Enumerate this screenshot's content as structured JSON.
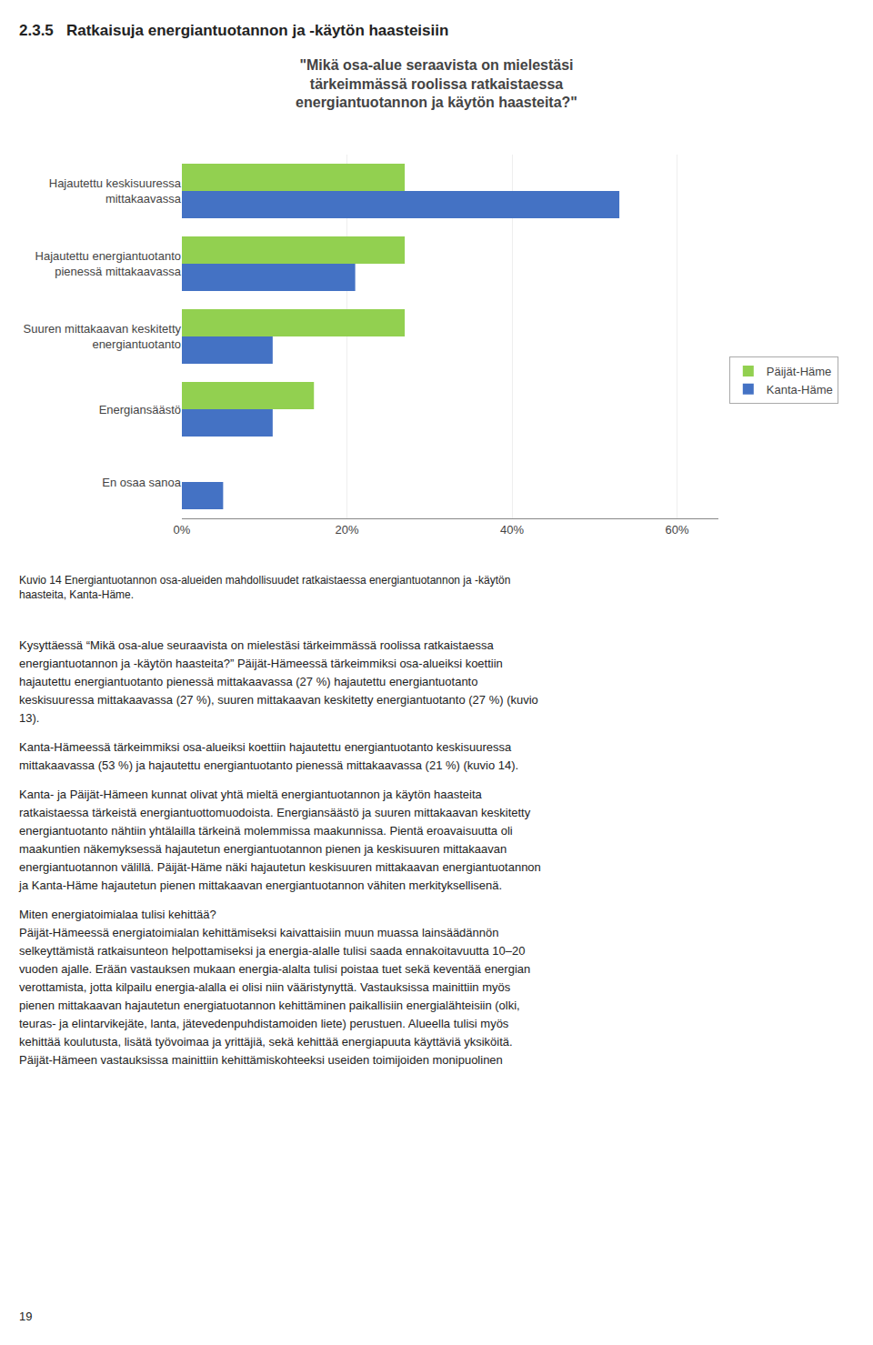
{
  "heading": "2.3.5   Ratkaisuja energiantuotannon ja -käytön haasteisiin",
  "chart_data": {
    "type": "bar",
    "orientation": "horizontal",
    "title": "\"Mikä osa-alue seraavista on mielestäsi\ntärkeimmässä roolissa ratkaistaessa\nenergiantuotannon ja käytön haasteita?\"",
    "categories": [
      "Hajautettu keskisuuressa\nmittakaavassa",
      "Hajautettu energiantuotanto\npienessä mittakaavassa",
      "Suuren mittakaavan keskitetty\nenergiantuotanto",
      "Energiansäästö",
      "En osaa sanoa"
    ],
    "series": [
      {
        "name": "Päijät-Häme",
        "color": "#92D050",
        "values": [
          27,
          27,
          27,
          16,
          0
        ]
      },
      {
        "name": "Kanta-Häme",
        "color": "#4472C4",
        "values": [
          53,
          21,
          11,
          11,
          5
        ]
      }
    ],
    "xlim": [
      0,
      65
    ],
    "xticks": [
      {
        "value": 0,
        "label": "0%"
      },
      {
        "value": 20,
        "label": "20%"
      },
      {
        "value": 40,
        "label": "40%"
      },
      {
        "value": 60,
        "label": "60%"
      }
    ],
    "grid": true,
    "legend": "right"
  },
  "caption": "Kuvio 14 Energiantuotannon osa-alueiden mahdollisuudet ratkaistaessa energiantuotannon ja -käytön\nhaasteita, Kanta-Häme.",
  "body": [
    [
      "Kysyttäessä “Mikä osa-alue seuraavista on mielestäsi tärkeimmässä roolissa ratkaistaessa",
      "energiantuotannon ja -käytön haasteita?” Päijät-Hämeessä tärkeimmiksi osa-alueiksi koettiin",
      "hajautettu energiantuotanto pienessä mittakaavassa (27 %) hajautettu energiantuotanto",
      "keskisuuressa mittakaavassa (27 %), suuren mittakaavan keskitetty energiantuotanto (27 %) (kuvio",
      "13)."
    ],
    [
      "Kanta-Hämeessä tärkeimmiksi osa-alueiksi koettiin hajautettu energiantuotanto keskisuuressa",
      "mittakaavassa (53 %) ja hajautettu energiantuotanto pienessä mittakaavassa (21 %) (kuvio 14)."
    ],
    [
      "Kanta- ja Päijät-Hämeen kunnat olivat yhtä mieltä energiantuotannon ja käytön haasteita",
      "ratkaistaessa tärkeistä energiantuottomuodoista. Energiansäästö ja suuren mittakaavan keskitetty",
      "energiantuotanto nähtiin yhtälailla tärkeinä molemmissa maakunnissa. Pientä eroavaisuutta oli",
      "maakuntien näkemyksessä hajautetun energiantuotannon pienen ja keskisuuren mittakaavan",
      "energiantuotannon välillä. Päijät-Häme näki hajautetun keskisuuren mittakaavan energiantuotannon",
      "ja Kanta-Häme hajautetun pienen mittakaavan energiantuotannon vähiten merkityksellisenä."
    ],
    [
      "Miten energiatoimialaa tulisi kehittää?",
      "Päijät-Hämeessä energiatoimialan kehittämiseksi kaivattaisiin muun muassa lainsäädännön",
      "selkeyttämistä ratkaisunteon helpottamiseksi ja energia-alalle tulisi saada ennakoitavuutta 10–20",
      "vuoden ajalle. Erään vastauksen mukaan energia-alalta tulisi poistaa tuet sekä keventää energian",
      "verottamista, jotta kilpailu energia-alalla ei olisi niin vääristynyttä. Vastauksissa mainittiin myös",
      "pienen mittakaavan hajautetun energiatuotannon kehittäminen paikallisiin energialähteisiin (olki,",
      "teuras- ja elintarvikejäte, lanta, jätevedenpuhdistamoiden liete) perustuen. Alueella tulisi myös",
      "kehittää koulutusta, lisätä työvoimaa ja yrittäjiä, sekä kehittää energiapuuta käyttäviä yksiköitä.",
      "Päijät-Hämeen vastauksissa mainittiin kehittämiskohteeksi useiden toimijoiden monipuolinen"
    ]
  ],
  "page_number": "19"
}
